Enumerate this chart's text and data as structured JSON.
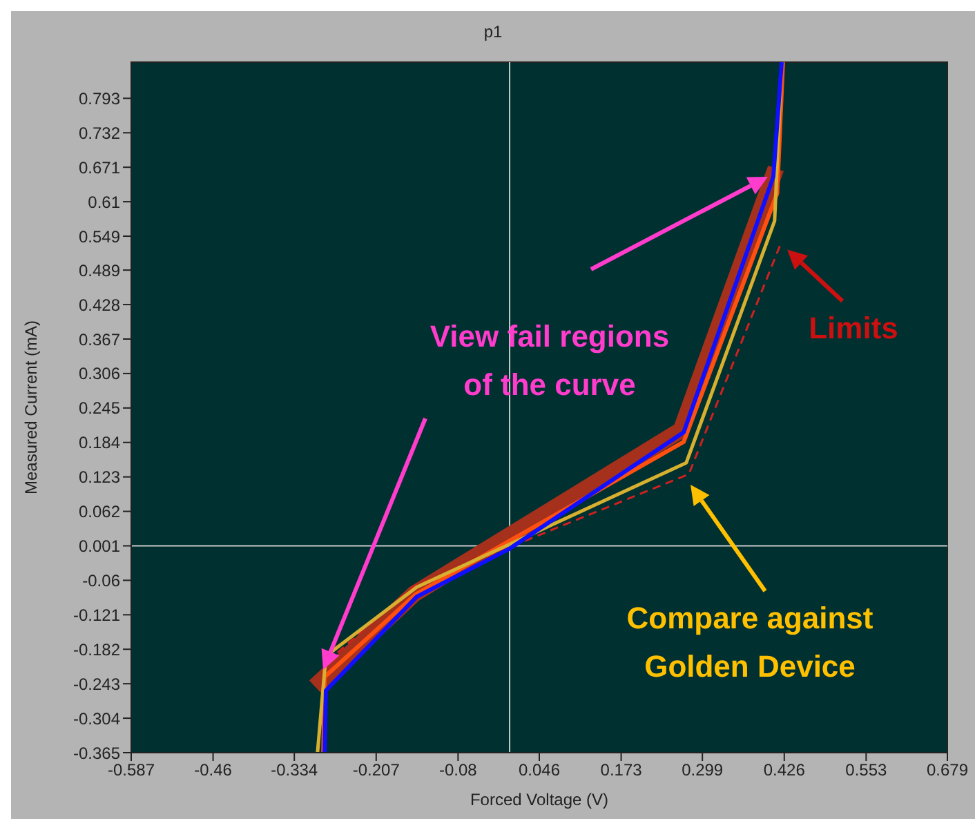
{
  "chart_data": {
    "type": "line",
    "title": "p1",
    "xlabel": "Forced Voltage (V)",
    "ylabel": "Measured Current (mA)",
    "xlim": [
      -0.587,
      0.679
    ],
    "xticks": [
      -0.587,
      -0.46,
      -0.334,
      -0.207,
      -0.08,
      0.046,
      0.173,
      0.299,
      0.426,
      0.553,
      0.679
    ],
    "ylim": [
      -0.365,
      0.857
    ],
    "yticks": [
      -0.365,
      -0.304,
      -0.243,
      -0.182,
      -0.121,
      -0.06,
      0.001,
      0.062,
      0.123,
      0.184,
      0.245,
      0.306,
      0.367,
      0.428,
      0.489,
      0.549,
      0.61,
      0.671,
      0.732,
      0.793
    ],
    "marker": "none",
    "ref_lines": [
      {
        "axis": "x",
        "value": 0,
        "color": "#c8c8c8"
      },
      {
        "axis": "y",
        "value": 0.001,
        "color": "#c8c8c8"
      }
    ],
    "series": [
      {
        "color": "#a5301c",
        "x": [
          -0.302,
          -0.148,
          0.266,
          0.413
        ],
        "values": [
          -0.248,
          -0.084,
          0.206,
          0.669
        ]
      },
      {
        "color": "#d02020",
        "line_style": "dashed",
        "x": [
          -0.283,
          -0.148,
          0.278,
          0.422
        ],
        "values": [
          -0.204,
          -0.07,
          0.128,
          0.54
        ]
      },
      {
        "color": "#ff5010",
        "x": [
          -0.289,
          -0.287,
          -0.146,
          0.27,
          0.415,
          0.424
        ],
        "values": [
          -0.365,
          -0.231,
          -0.085,
          0.185,
          0.625,
          0.857
        ]
      },
      {
        "color": "#d8b030",
        "x": [
          -0.298,
          -0.285,
          -0.144,
          0.274,
          0.411,
          0.422
        ],
        "values": [
          -0.365,
          -0.194,
          -0.072,
          0.148,
          0.576,
          0.857
        ]
      },
      {
        "color": "#1010ff",
        "x": [
          -0.287,
          -0.285,
          -0.144,
          0.0,
          0.27,
          0.409,
          0.422
        ],
        "values": [
          -0.365,
          -0.255,
          -0.089,
          -0.004,
          0.202,
          0.654,
          0.857
        ]
      }
    ],
    "annotations": [
      "View fail regions of the curve",
      {
        "text": "Limits",
        "x": 0.422,
        "y": 0.54
      },
      "Compare against Golden Device"
    ]
  }
}
